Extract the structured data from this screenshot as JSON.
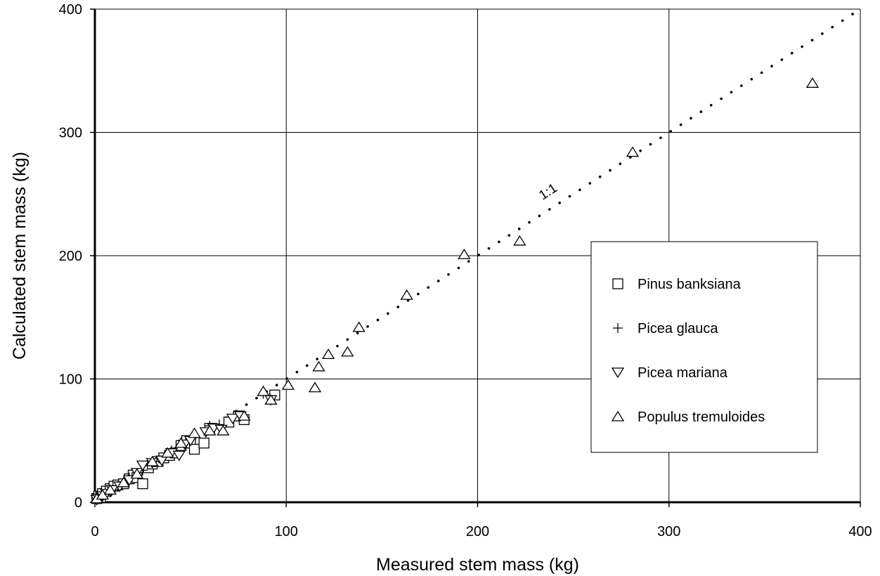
{
  "chart_data": {
    "type": "scatter",
    "xlabel": "Measured stem mass (kg)",
    "ylabel": "Calculated stem mass (kg)",
    "xlim": [
      0,
      400
    ],
    "ylim": [
      0,
      400
    ],
    "xticks": [
      "0",
      "100",
      "200",
      "300",
      "400"
    ],
    "yticks": [
      "0",
      "100",
      "200",
      "300",
      "400"
    ],
    "grid": true,
    "legend_position": "right",
    "reference_line": {
      "label": "1:1",
      "style": "dotted",
      "from": [
        0,
        0
      ],
      "to": [
        400,
        400
      ]
    },
    "series": [
      {
        "name": "Pinus banksiana",
        "marker": "square",
        "points": [
          [
            1,
            3
          ],
          [
            2,
            5
          ],
          [
            3,
            4
          ],
          [
            4,
            7
          ],
          [
            6,
            9
          ],
          [
            8,
            11
          ],
          [
            10,
            13
          ],
          [
            12,
            14
          ],
          [
            15,
            15
          ],
          [
            18,
            19
          ],
          [
            20,
            22
          ],
          [
            22,
            20
          ],
          [
            25,
            15
          ],
          [
            28,
            28
          ],
          [
            30,
            31
          ],
          [
            33,
            33
          ],
          [
            36,
            36
          ],
          [
            39,
            38
          ],
          [
            42,
            40
          ],
          [
            45,
            46
          ],
          [
            48,
            50
          ],
          [
            50,
            48
          ],
          [
            52,
            43
          ],
          [
            57,
            48
          ],
          [
            60,
            60
          ],
          [
            70,
            65
          ],
          [
            75,
            70
          ],
          [
            78,
            67
          ],
          [
            94,
            87
          ]
        ]
      },
      {
        "name": "Picea glauca",
        "marker": "plus",
        "points": [
          [
            1,
            2
          ],
          [
            3,
            4
          ],
          [
            5,
            6
          ],
          [
            8,
            8
          ],
          [
            12,
            13
          ],
          [
            18,
            20
          ],
          [
            25,
            26
          ],
          [
            32,
            33
          ],
          [
            40,
            42
          ],
          [
            48,
            50
          ],
          [
            60,
            62
          ],
          [
            65,
            63
          ],
          [
            88,
            88
          ]
        ]
      },
      {
        "name": "Picea mariana",
        "marker": "triangle-down",
        "points": [
          [
            1,
            2
          ],
          [
            2,
            3
          ],
          [
            4,
            5
          ],
          [
            6,
            7
          ],
          [
            9,
            10
          ],
          [
            13,
            13
          ],
          [
            18,
            18
          ],
          [
            22,
            24
          ],
          [
            25,
            30
          ],
          [
            30,
            32
          ],
          [
            35,
            34
          ],
          [
            40,
            40
          ],
          [
            44,
            38
          ],
          [
            47,
            47
          ],
          [
            50,
            50
          ],
          [
            58,
            57
          ],
          [
            62,
            60
          ],
          [
            66,
            59
          ],
          [
            72,
            68
          ],
          [
            76,
            70
          ],
          [
            92,
            83
          ]
        ]
      },
      {
        "name": "Populus tremuloides",
        "marker": "triangle-up",
        "points": [
          [
            1,
            3
          ],
          [
            4,
            6
          ],
          [
            8,
            10
          ],
          [
            15,
            16
          ],
          [
            22,
            23
          ],
          [
            30,
            33
          ],
          [
            38,
            40
          ],
          [
            45,
            48
          ],
          [
            52,
            56
          ],
          [
            60,
            58
          ],
          [
            67,
            58
          ],
          [
            78,
            70
          ],
          [
            88,
            90
          ],
          [
            92,
            83
          ],
          [
            101,
            95
          ],
          [
            115,
            93
          ],
          [
            117,
            110
          ],
          [
            122,
            120
          ],
          [
            132,
            122
          ],
          [
            138,
            142
          ],
          [
            163,
            168
          ],
          [
            193,
            201
          ],
          [
            222,
            212
          ],
          [
            281,
            284
          ],
          [
            375,
            340
          ]
        ]
      }
    ]
  }
}
